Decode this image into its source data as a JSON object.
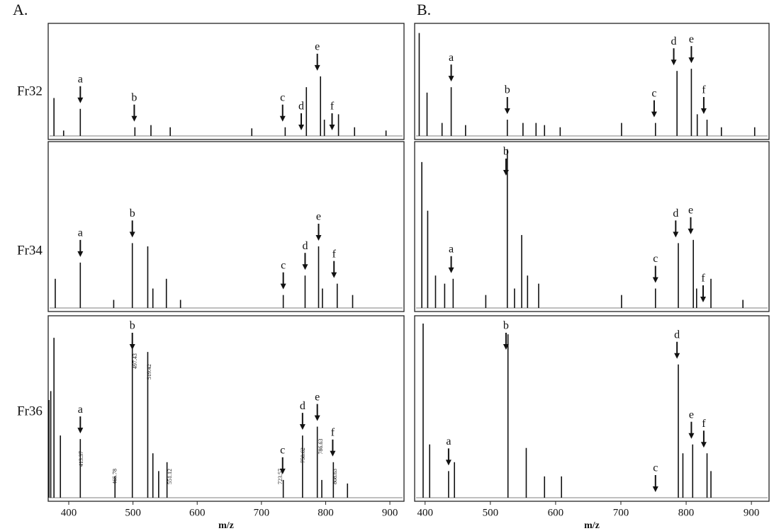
{
  "column_labels": [
    "A.",
    "B."
  ],
  "row_labels": [
    "Fr32",
    "Fr34",
    "Fr36"
  ],
  "chart_data": [
    {
      "type": "spectrum",
      "xlim": [
        368,
        922
      ],
      "ylim": [
        0,
        100
      ],
      "x": [
        377,
        392,
        418,
        503,
        528,
        558,
        685,
        737,
        770,
        792,
        798,
        820,
        845,
        894
      ],
      "values": [
        35,
        5,
        25,
        8,
        10,
        8,
        7,
        8,
        45,
        55,
        15,
        20,
        8,
        5
      ],
      "annotations": [
        {
          "label": "a",
          "x": 418
        },
        {
          "label": "b",
          "x": 502
        },
        {
          "label": "c",
          "x": 733
        },
        {
          "label": "d",
          "x": 762
        },
        {
          "label": "e",
          "x": 787
        },
        {
          "label": "f",
          "x": 810
        }
      ]
    },
    {
      "type": "spectrum",
      "xlim": [
        384,
        927
      ],
      "ylim": [
        0,
        100
      ],
      "x": [
        391,
        403,
        426,
        440,
        462,
        526,
        550,
        570,
        583,
        607,
        701,
        753,
        786,
        808,
        817,
        832,
        854,
        905
      ],
      "values": [
        95,
        40,
        12,
        45,
        10,
        15,
        12,
        12,
        10,
        8,
        12,
        12,
        60,
        62,
        20,
        15,
        8,
        8
      ],
      "annotations": [
        {
          "label": "a",
          "x": 440
        },
        {
          "label": "b",
          "x": 526
        },
        {
          "label": "c",
          "x": 751
        },
        {
          "label": "d",
          "x": 781
        },
        {
          "label": "e",
          "x": 808
        },
        {
          "label": "f",
          "x": 827
        }
      ]
    },
    {
      "type": "spectrum",
      "xlim": [
        368,
        922
      ],
      "ylim": [
        0,
        100
      ],
      "x": [
        379,
        418,
        470,
        499,
        523,
        531,
        552,
        574,
        734,
        768,
        789,
        795,
        818,
        842
      ],
      "values": [
        18,
        28,
        5,
        40,
        38,
        12,
        18,
        5,
        8,
        20,
        38,
        12,
        15,
        8
      ],
      "annotations": [
        {
          "label": "a",
          "x": 418
        },
        {
          "label": "b",
          "x": 499
        },
        {
          "label": "c",
          "x": 734
        },
        {
          "label": "d",
          "x": 768
        },
        {
          "label": "e",
          "x": 789
        },
        {
          "label": "f",
          "x": 813
        }
      ]
    },
    {
      "type": "spectrum",
      "xlim": [
        384,
        927
      ],
      "ylim": [
        0,
        100
      ],
      "x": [
        395,
        404,
        416,
        430,
        443,
        493,
        526,
        537,
        548,
        557,
        574,
        701,
        753,
        788,
        811,
        816,
        838,
        887
      ],
      "values": [
        90,
        60,
        20,
        15,
        18,
        8,
        98,
        12,
        45,
        20,
        15,
        8,
        12,
        40,
        42,
        12,
        18,
        5
      ],
      "annotations": [
        {
          "label": "a",
          "x": 440
        },
        {
          "label": "b",
          "x": 524
        },
        {
          "label": "c",
          "x": 753
        },
        {
          "label": "d",
          "x": 784
        },
        {
          "label": "e",
          "x": 807
        },
        {
          "label": "f",
          "x": 826
        }
      ]
    },
    {
      "type": "spectrum",
      "xlim": [
        368,
        922
      ],
      "ylim": [
        0,
        100
      ],
      "x": [
        362,
        372,
        377,
        387,
        418,
        472,
        499,
        523,
        531,
        540,
        553,
        734,
        764,
        787,
        794,
        812,
        834
      ],
      "values": [
        55,
        60,
        90,
        35,
        33,
        12,
        88,
        82,
        25,
        15,
        20,
        10,
        35,
        40,
        10,
        20,
        8
      ],
      "annotations": [
        {
          "label": "a",
          "x": 418
        },
        {
          "label": "b",
          "x": 499
        },
        {
          "label": "c",
          "x": 733
        },
        {
          "label": "d",
          "x": 764
        },
        {
          "label": "e",
          "x": 787
        },
        {
          "label": "f",
          "x": 811
        }
      ],
      "peak_labels": [
        413.37,
        465.78,
        497.43,
        519.42,
        551.12,
        723.57,
        758.62,
        786.63,
        808.63
      ],
      "xticks": [
        400,
        500,
        600,
        700,
        800,
        900
      ],
      "xlabel": "m/z"
    },
    {
      "type": "spectrum",
      "xlim": [
        384,
        927
      ],
      "ylim": [
        0,
        100
      ],
      "x": [
        397,
        407,
        436,
        445,
        527,
        555,
        583,
        609,
        788,
        795,
        810,
        832,
        838
      ],
      "values": [
        98,
        30,
        15,
        20,
        92,
        28,
        12,
        12,
        75,
        25,
        30,
        25,
        15
      ],
      "annotations": [
        {
          "label": "a",
          "x": 436
        },
        {
          "label": "b",
          "x": 524
        },
        {
          "label": "c",
          "x": 753
        },
        {
          "label": "d",
          "x": 786
        },
        {
          "label": "e",
          "x": 808
        },
        {
          "label": "f",
          "x": 827
        }
      ],
      "xticks": [
        400,
        500,
        600,
        700,
        800,
        900
      ],
      "xlabel": "m/z"
    }
  ]
}
